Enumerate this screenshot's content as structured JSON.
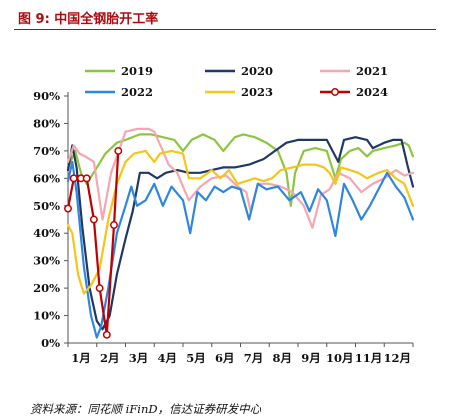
{
  "title": "图 9:  中国全钢胎开工率",
  "source": "资料来源：同花顺 iFinD，信达证券研发中心",
  "chart_data": {
    "type": "line",
    "title": "",
    "xlabel": "",
    "ylabel": "",
    "categories": [
      "1月",
      "2月",
      "3月",
      "4月",
      "5月",
      "6月",
      "7月",
      "8月",
      "9月",
      "10月",
      "11月",
      "12月"
    ],
    "y_ticks": [
      "0%",
      "10%",
      "20%",
      "30%",
      "40%",
      "50%",
      "60%",
      "70%",
      "80%",
      "90%"
    ],
    "ylim": [
      0,
      90
    ],
    "xlim": [
      1,
      13
    ],
    "grid": false,
    "legend_position": "top",
    "series": [
      {
        "name": "2019",
        "color": "#8cc63f",
        "marker": false,
        "points": [
          [
            1.0,
            64
          ],
          [
            1.25,
            70
          ],
          [
            1.45,
            62
          ],
          [
            1.65,
            58
          ],
          [
            1.95,
            63
          ],
          [
            2.3,
            69
          ],
          [
            2.7,
            73
          ],
          [
            3.0,
            74
          ],
          [
            3.5,
            76
          ],
          [
            3.9,
            76
          ],
          [
            4.3,
            75
          ],
          [
            4.7,
            74
          ],
          [
            5.0,
            70
          ],
          [
            5.3,
            74
          ],
          [
            5.7,
            76
          ],
          [
            6.1,
            74
          ],
          [
            6.4,
            70
          ],
          [
            6.8,
            75
          ],
          [
            7.1,
            76
          ],
          [
            7.5,
            75
          ],
          [
            7.9,
            73
          ],
          [
            8.3,
            70
          ],
          [
            8.6,
            62
          ],
          [
            8.75,
            50
          ],
          [
            8.9,
            62
          ],
          [
            9.2,
            70
          ],
          [
            9.6,
            71
          ],
          [
            10.0,
            70
          ],
          [
            10.3,
            60
          ],
          [
            10.5,
            67
          ],
          [
            10.8,
            70
          ],
          [
            11.1,
            71
          ],
          [
            11.4,
            68
          ],
          [
            11.6,
            70
          ],
          [
            12.0,
            71
          ],
          [
            12.4,
            72
          ],
          [
            12.7,
            73
          ],
          [
            12.85,
            72
          ],
          [
            13.0,
            68
          ]
        ]
      },
      {
        "name": "2020",
        "color": "#1f3864",
        "marker": false,
        "points": [
          [
            1.0,
            63
          ],
          [
            1.15,
            72
          ],
          [
            1.3,
            64
          ],
          [
            1.5,
            42
          ],
          [
            1.75,
            20
          ],
          [
            2.0,
            8
          ],
          [
            2.2,
            5
          ],
          [
            2.45,
            10
          ],
          [
            2.7,
            25
          ],
          [
            3.0,
            38
          ],
          [
            3.25,
            48
          ],
          [
            3.5,
            62
          ],
          [
            3.8,
            62
          ],
          [
            4.1,
            60
          ],
          [
            4.4,
            62
          ],
          [
            4.8,
            63
          ],
          [
            5.2,
            62
          ],
          [
            5.6,
            62
          ],
          [
            6.0,
            63
          ],
          [
            6.4,
            64
          ],
          [
            6.8,
            64
          ],
          [
            7.3,
            65
          ],
          [
            7.8,
            67
          ],
          [
            8.2,
            70
          ],
          [
            8.6,
            73
          ],
          [
            9.0,
            74
          ],
          [
            9.5,
            74
          ],
          [
            10.0,
            74
          ],
          [
            10.4,
            66
          ],
          [
            10.6,
            74
          ],
          [
            11.0,
            75
          ],
          [
            11.4,
            74
          ],
          [
            11.6,
            71
          ],
          [
            12.0,
            73
          ],
          [
            12.3,
            74
          ],
          [
            12.6,
            74
          ],
          [
            12.8,
            65
          ],
          [
            13.0,
            57
          ]
        ]
      },
      {
        "name": "2021",
        "color": "#f4a6b1",
        "marker": false,
        "points": [
          [
            1.0,
            66
          ],
          [
            1.2,
            72
          ],
          [
            1.4,
            69
          ],
          [
            1.6,
            68
          ],
          [
            1.9,
            66
          ],
          [
            2.2,
            45
          ],
          [
            2.5,
            62
          ],
          [
            2.8,
            71
          ],
          [
            3.0,
            77
          ],
          [
            3.4,
            78
          ],
          [
            3.8,
            78
          ],
          [
            4.0,
            77
          ],
          [
            4.3,
            70
          ],
          [
            4.5,
            65
          ],
          [
            4.8,
            62
          ],
          [
            5.0,
            57
          ],
          [
            5.2,
            52
          ],
          [
            5.6,
            57
          ],
          [
            6.0,
            60
          ],
          [
            6.5,
            61
          ],
          [
            6.9,
            57
          ],
          [
            7.2,
            55
          ],
          [
            7.35,
            48
          ],
          [
            7.6,
            58
          ],
          [
            8.0,
            58
          ],
          [
            8.4,
            57
          ],
          [
            8.8,
            55
          ],
          [
            9.2,
            50
          ],
          [
            9.5,
            42
          ],
          [
            9.8,
            54
          ],
          [
            10.1,
            56
          ],
          [
            10.4,
            62
          ],
          [
            10.8,
            60
          ],
          [
            11.2,
            55
          ],
          [
            11.6,
            58
          ],
          [
            12.0,
            60
          ],
          [
            12.4,
            63
          ],
          [
            12.7,
            61
          ],
          [
            13.0,
            62
          ]
        ]
      },
      {
        "name": "2022",
        "color": "#2e86de",
        "marker": false,
        "points": [
          [
            1.0,
            59
          ],
          [
            1.15,
            66
          ],
          [
            1.3,
            55
          ],
          [
            1.55,
            28
          ],
          [
            1.8,
            10
          ],
          [
            2.0,
            2
          ],
          [
            2.15,
            6
          ],
          [
            2.4,
            20
          ],
          [
            2.7,
            40
          ],
          [
            3.0,
            50
          ],
          [
            3.2,
            57
          ],
          [
            3.4,
            50
          ],
          [
            3.7,
            52
          ],
          [
            4.0,
            58
          ],
          [
            4.3,
            50
          ],
          [
            4.6,
            57
          ],
          [
            5.0,
            52
          ],
          [
            5.25,
            40
          ],
          [
            5.5,
            55
          ],
          [
            5.8,
            52
          ],
          [
            6.1,
            57
          ],
          [
            6.4,
            55
          ],
          [
            6.7,
            57
          ],
          [
            7.0,
            56
          ],
          [
            7.3,
            45
          ],
          [
            7.6,
            58
          ],
          [
            7.9,
            56
          ],
          [
            8.3,
            57
          ],
          [
            8.7,
            52
          ],
          [
            9.1,
            55
          ],
          [
            9.4,
            48
          ],
          [
            9.7,
            56
          ],
          [
            10.0,
            52
          ],
          [
            10.3,
            39
          ],
          [
            10.6,
            58
          ],
          [
            10.9,
            52
          ],
          [
            11.2,
            45
          ],
          [
            11.5,
            50
          ],
          [
            11.8,
            56
          ],
          [
            12.1,
            62
          ],
          [
            12.4,
            57
          ],
          [
            12.7,
            53
          ],
          [
            13.0,
            45
          ]
        ]
      },
      {
        "name": "2023",
        "color": "#f5c518",
        "marker": false,
        "points": [
          [
            1.0,
            43
          ],
          [
            1.15,
            40
          ],
          [
            1.35,
            25
          ],
          [
            1.55,
            18
          ],
          [
            1.8,
            21
          ],
          [
            2.1,
            27
          ],
          [
            2.4,
            45
          ],
          [
            2.7,
            58
          ],
          [
            3.0,
            66
          ],
          [
            3.3,
            69
          ],
          [
            3.7,
            70
          ],
          [
            4.0,
            66
          ],
          [
            4.2,
            69
          ],
          [
            4.6,
            70
          ],
          [
            5.0,
            69
          ],
          [
            5.2,
            60
          ],
          [
            5.6,
            60
          ],
          [
            6.0,
            63
          ],
          [
            6.3,
            60
          ],
          [
            6.6,
            63
          ],
          [
            6.9,
            58
          ],
          [
            7.2,
            59
          ],
          [
            7.5,
            60
          ],
          [
            7.8,
            59
          ],
          [
            8.1,
            60
          ],
          [
            8.4,
            63
          ],
          [
            8.8,
            64
          ],
          [
            9.2,
            65
          ],
          [
            9.6,
            65
          ],
          [
            9.9,
            64
          ],
          [
            10.1,
            62
          ],
          [
            10.3,
            58
          ],
          [
            10.5,
            64
          ],
          [
            10.8,
            63
          ],
          [
            11.1,
            62
          ],
          [
            11.4,
            60
          ],
          [
            11.8,
            62
          ],
          [
            12.1,
            63
          ],
          [
            12.4,
            60
          ],
          [
            12.7,
            58
          ],
          [
            13.0,
            50
          ]
        ]
      },
      {
        "name": "2024",
        "color": "#c00000",
        "marker": true,
        "points": [
          [
            1.0,
            49
          ],
          [
            1.2,
            60
          ],
          [
            1.45,
            60
          ],
          [
            1.65,
            60
          ],
          [
            1.9,
            45
          ],
          [
            2.1,
            20
          ],
          [
            2.35,
            3
          ],
          [
            2.6,
            43
          ],
          [
            2.75,
            70
          ]
        ]
      }
    ]
  }
}
